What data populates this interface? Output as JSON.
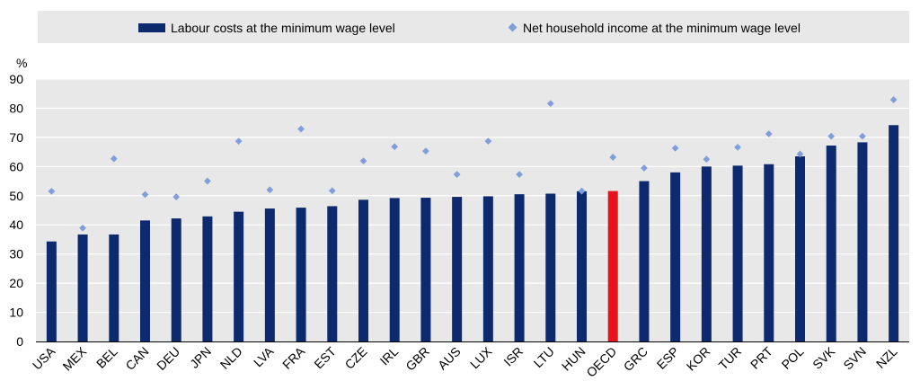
{
  "chart_data": {
    "type": "bar",
    "y_unit": "%",
    "ylim": [
      0,
      90
    ],
    "y_ticks": [
      0,
      10,
      20,
      30,
      40,
      50,
      60,
      70,
      80,
      90
    ],
    "grid": true,
    "legend_position": "top",
    "categories": [
      "USA",
      "MEX",
      "BEL",
      "CAN",
      "DEU",
      "JPN",
      "NLD",
      "LVA",
      "FRA",
      "EST",
      "CZE",
      "IRL",
      "GBR",
      "AUS",
      "LUX",
      "ISR",
      "LTU",
      "HUN",
      "OECD",
      "GRC",
      "ESP",
      "KOR",
      "TUR",
      "PRT",
      "POL",
      "SVK",
      "SVN",
      "NZL"
    ],
    "highlight_category": "OECD",
    "series": [
      {
        "name": "Labour costs at the minimum wage level",
        "type": "bar",
        "color": "#0d2a6e",
        "values": [
          34.3,
          36.7,
          36.7,
          41.5,
          42.2,
          42.9,
          44.5,
          45.6,
          45.9,
          46.4,
          48.6,
          49.2,
          49.3,
          49.6,
          49.8,
          50.5,
          50.7,
          51.5,
          51.6,
          55.0,
          58.0,
          60.0,
          60.3,
          60.8,
          63.5,
          67.2,
          68.3,
          74.2
        ]
      },
      {
        "name": "Net household income at the minimum wage level",
        "type": "scatter",
        "color": "#7f9fdb",
        "values": [
          51.5,
          38.9,
          62.7,
          50.4,
          49.6,
          55.0,
          68.7,
          52.0,
          72.9,
          51.7,
          61.9,
          66.8,
          65.3,
          57.3,
          68.7,
          57.3,
          81.6,
          51.6,
          63.2,
          59.5,
          66.3,
          62.5,
          66.6,
          71.2,
          64.3,
          70.4,
          70.4,
          82.9
        ]
      }
    ],
    "colors": {
      "highlight": "#e8141b",
      "legend_background": "#e8e8e8",
      "grid": "#ffffff",
      "plot_background": "#e8e8e8"
    }
  }
}
